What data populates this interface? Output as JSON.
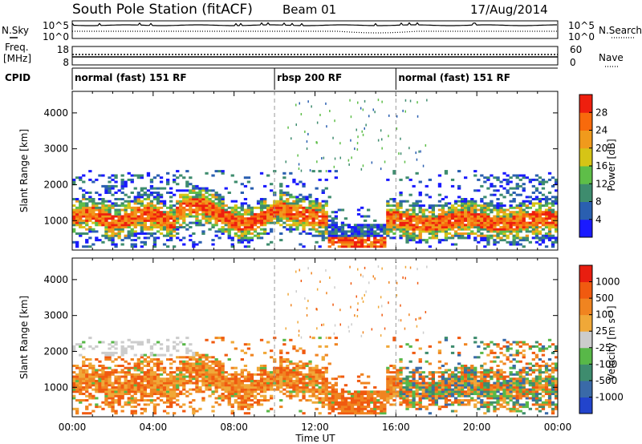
{
  "chart_data": [
    {
      "type": "header",
      "title_station": "South Pole Station (fitACF)",
      "title_beam": "Beam 01",
      "title_date": "17/Aug/2014"
    },
    {
      "type": "line",
      "label_left": "N.Sky",
      "label_right": "N.Search",
      "left_ticks": [
        "10^5",
        "10^0"
      ],
      "right_ticks": [
        "10^5",
        "10^0"
      ]
    },
    {
      "type": "line",
      "label_left_line1": "Freq.",
      "label_left_line2": "[MHz]",
      "label_right": "Nave",
      "left_ticks": [
        "18",
        "8"
      ],
      "right_ticks": [
        "60",
        "0"
      ]
    },
    {
      "type": "timeline",
      "label": "CPID",
      "segments": [
        {
          "start": 0,
          "end": 10,
          "label": "normal (fast) 151 RF"
        },
        {
          "start": 10,
          "end": 16,
          "label": "rbsp 200 RF"
        },
        {
          "start": 16,
          "end": 24,
          "label": "normal (fast) 151 RF"
        }
      ]
    },
    {
      "type": "heatmap",
      "quantity": "power",
      "ylabel": "Slant Range [km]",
      "yticks": [
        "1000",
        "2000",
        "3000",
        "4000"
      ],
      "ylim": [
        180,
        4600
      ],
      "colorbar": {
        "label": "Power [dB]",
        "ticks": [
          "4",
          "8",
          "12",
          "16",
          "20",
          "24",
          "28"
        ],
        "range": [
          0,
          32
        ],
        "colors": [
          "#1a1aff",
          "#2a5fb0",
          "#3e8c6e",
          "#5ebe48",
          "#d6c416",
          "#f09a1c",
          "#f86a0c",
          "#ee1f0e"
        ]
      }
    },
    {
      "type": "heatmap",
      "quantity": "velocity",
      "ylabel": "Slant Range [km]",
      "yticks": [
        "1000",
        "2000",
        "3000",
        "4000"
      ],
      "ylim": [
        180,
        4600
      ],
      "xlabel": "Time UT",
      "xticks": [
        "00:00",
        "04:00",
        "08:00",
        "12:00",
        "16:00",
        "20:00",
        "00:00"
      ],
      "xlim": [
        0,
        24
      ],
      "colorbar": {
        "label": "Velocity [m s⁻¹]",
        "ticks": [
          "1000",
          "500",
          "100",
          "25",
          "-25",
          "-100",
          "-500",
          "-1000"
        ],
        "colors": [
          "#2244cc",
          "#3a6aa8",
          "#3e8c6e",
          "#58b848",
          "#cccccc",
          "#f0a838",
          "#f08420",
          "#f05a10",
          "#e81e10"
        ]
      }
    }
  ]
}
